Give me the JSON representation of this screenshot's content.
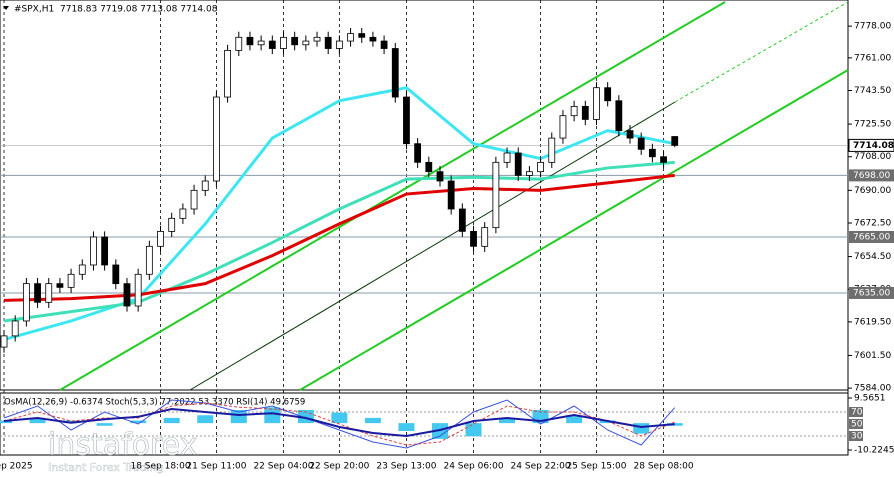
{
  "chart_data": {
    "type": "candlestick",
    "title": "#SPX,H1",
    "header_values": "7718.83 7719.08 7713.08 7714.08",
    "open": [
      7606,
      7612,
      7620,
      7640,
      7630,
      7640,
      7638,
      7645,
      7650,
      7665,
      7650,
      7640,
      7628,
      7645,
      7660,
      7668,
      7675,
      7680,
      7690,
      7695,
      7740,
      7765,
      7772,
      7768,
      7770,
      7766,
      7772,
      7768,
      7770,
      7772,
      7766,
      7770,
      7774,
      7772,
      7770,
      7766,
      7740,
      7715,
      7705,
      7700,
      7695,
      7680,
      7668,
      7660,
      7670,
      7705,
      7710,
      7698,
      7700,
      7705,
      7718,
      7730,
      7735,
      7728,
      7745,
      7738,
      7722,
      7718,
      7712,
      7708,
      7718.83
    ],
    "high": [
      7615,
      7623,
      7643,
      7643,
      7643,
      7643,
      7648,
      7653,
      7668,
      7668,
      7653,
      7643,
      7648,
      7663,
      7671,
      7678,
      7683,
      7693,
      7698,
      7743,
      7768,
      7775,
      7775,
      7773,
      7773,
      7775,
      7775,
      7773,
      7775,
      7775,
      7773,
      7777,
      7777,
      7775,
      7773,
      7769,
      7743,
      7718,
      7708,
      7703,
      7698,
      7683,
      7671,
      7673,
      7708,
      7713,
      7713,
      7703,
      7708,
      7721,
      7733,
      7738,
      7738,
      7748,
      7748,
      7741,
      7725,
      7721,
      7715,
      7711,
      7719.08
    ],
    "low": [
      7603,
      7609,
      7617,
      7627,
      7627,
      7635,
      7635,
      7642,
      7647,
      7647,
      7637,
      7625,
      7625,
      7642,
      7657,
      7665,
      7672,
      7677,
      7687,
      7692,
      7737,
      7762,
      7765,
      7765,
      7763,
      7763,
      7765,
      7765,
      7767,
      7763,
      7763,
      7767,
      7769,
      7767,
      7763,
      7737,
      7712,
      7702,
      7697,
      7692,
      7677,
      7665,
      7657,
      7657,
      7667,
      7702,
      7695,
      7695,
      7697,
      7702,
      7715,
      7727,
      7725,
      7725,
      7735,
      7719,
      7715,
      7709,
      7705,
      7702,
      7713.08
    ],
    "close": [
      7612,
      7620,
      7640,
      7630,
      7640,
      7638,
      7645,
      7650,
      7665,
      7650,
      7640,
      7628,
      7645,
      7660,
      7668,
      7675,
      7680,
      7690,
      7695,
      7740,
      7765,
      7772,
      7768,
      7770,
      7766,
      7772,
      7768,
      7770,
      7772,
      7766,
      7770,
      7774,
      7772,
      7770,
      7766,
      7740,
      7715,
      7705,
      7700,
      7695,
      7680,
      7668,
      7660,
      7670,
      7705,
      7710,
      7698,
      7700,
      7705,
      7718,
      7730,
      7735,
      7728,
      7745,
      7738,
      7722,
      7718,
      7712,
      7708,
      7705,
      7714.08
    ],
    "xlim": [
      -0.36,
      75.5
    ],
    "xticks": [
      {
        "value": 0,
        "label": "17 Sep 2025"
      },
      {
        "value": 14,
        "label": "18 Sep 18:00"
      },
      {
        "value": 19,
        "label": "21 Sep 11:00"
      },
      {
        "value": 25,
        "label": "22 Sep 04:00"
      },
      {
        "value": 30,
        "label": "22 Sep 20:00"
      },
      {
        "value": 36,
        "label": "23 Sep 13:00"
      },
      {
        "value": 42,
        "label": "24 Sep 06:00"
      },
      {
        "value": 48,
        "label": "24 Sep 22:00"
      },
      {
        "value": 53,
        "label": "25 Sep 15:00"
      },
      {
        "value": 59,
        "label": "28 Sep 08:00"
      }
    ],
    "ylim": [
      7583,
      7792
    ],
    "yticks": [
      {
        "value": 7778,
        "label": "7778.00"
      },
      {
        "value": 7761,
        "label": "7761.00"
      },
      {
        "value": 7743.5,
        "label": "7743.50"
      },
      {
        "value": 7725.5,
        "label": "7725.50"
      },
      {
        "value": 7708,
        "label": "7708.00"
      },
      {
        "value": 7690,
        "label": "7690.00"
      },
      {
        "value": 7672.5,
        "label": "7672.50"
      },
      {
        "value": 7654.5,
        "label": "7654.50"
      },
      {
        "value": 7637,
        "label": "7637.00"
      },
      {
        "value": 7619.5,
        "label": "7619.50"
      },
      {
        "value": 7601.5,
        "label": "7601.50"
      },
      {
        "value": 7584,
        "label": "7584.00"
      }
    ],
    "current_price": {
      "value": 7714.08,
      "label": "7714.08"
    },
    "levels": [
      {
        "value": 7698,
        "label": "7698.00"
      },
      {
        "value": 7665,
        "label": "7665.00"
      },
      {
        "value": 7635,
        "label": "7635.00"
      }
    ],
    "moving_averages": {
      "x": [
        0,
        6,
        12,
        18,
        24,
        30,
        36,
        42,
        48,
        54,
        60
      ],
      "series": [
        {
          "color": "#3ee6f2",
          "values": [
            7610,
            7620,
            7632,
            7672,
            7718,
            7738,
            7745,
            7715,
            7707,
            7722,
            7715
          ]
        },
        {
          "color": "#3fe0b8",
          "values": [
            7620,
            7625,
            7630,
            7645,
            7662,
            7680,
            7696,
            7697,
            7696,
            7702,
            7705
          ]
        },
        {
          "color": "#e00000",
          "values": [
            7631,
            7632,
            7634,
            7640,
            7655,
            7672,
            7688,
            7691,
            7690,
            7694,
            7698
          ]
        }
      ]
    },
    "oscillator": {
      "header": "OsMA(12,26,9) -0.6374  Stoch(5,3,3) 77.2022 53.3370  RSI(14) 49.6759",
      "x": [
        0,
        3,
        6,
        9,
        12,
        15,
        18,
        21,
        24,
        27,
        30,
        33,
        36,
        39,
        42,
        45,
        48,
        51,
        54,
        57,
        60
      ],
      "ylim": [
        -12.13,
        11.47
      ],
      "yticks": [
        {
          "value": 9.5651,
          "label": "9.5651"
        },
        {
          "value": -10.2245,
          "label": "-10.2245"
        }
      ],
      "y2lim": [
        0,
        100
      ],
      "y2ticks": [
        70,
        50,
        30
      ],
      "osma": {
        "color": "#45c8f0",
        "values": [
          1,
          2,
          1,
          -1,
          1,
          2,
          3,
          5,
          6,
          5,
          4,
          2,
          -3,
          -6,
          -5,
          2,
          5,
          3,
          1,
          -4,
          -1
        ]
      },
      "series": [
        {
          "name": "Stoch",
          "color": "#3a52e0",
          "values": [
            60,
            80,
            40,
            70,
            50,
            90,
            85,
            70,
            80,
            60,
            40,
            20,
            10,
            30,
            70,
            90,
            50,
            80,
            40,
            15,
            77.2
          ]
        },
        {
          "name": "Signal",
          "color": "#e04040",
          "values": [
            55,
            70,
            55,
            60,
            60,
            80,
            85,
            78,
            75,
            70,
            50,
            30,
            15,
            20,
            50,
            80,
            70,
            70,
            55,
            30,
            53.3
          ]
        },
        {
          "name": "RSI",
          "color": "#1a1aa0",
          "values": [
            55,
            60,
            52,
            58,
            62,
            75,
            70,
            65,
            68,
            60,
            45,
            35,
            30,
            40,
            55,
            60,
            55,
            65,
            55,
            45,
            49.7
          ]
        }
      ]
    },
    "watermark": {
      "brand": "instaforex",
      "tagline": "Instant Forex Trading"
    }
  }
}
